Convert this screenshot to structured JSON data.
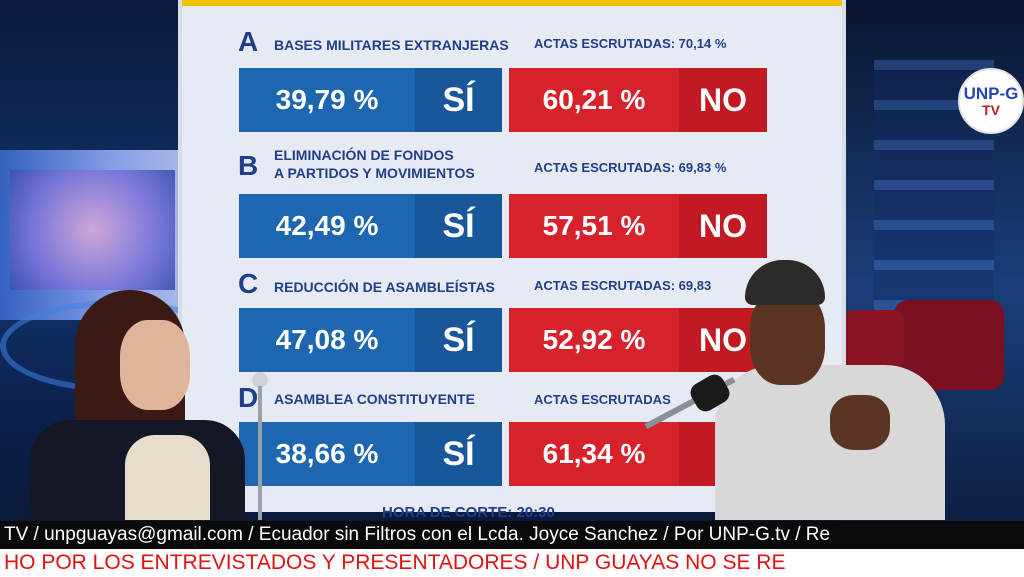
{
  "board": {
    "questions": [
      {
        "letter": "A",
        "title_lines": [
          "BASES MILITARES EXTRANJERAS"
        ],
        "actas": "ACTAS ESCRUTADAS: 70,14 %",
        "si_pct": "39,79 %",
        "si_label": "SÍ",
        "no_pct": "60,21 %",
        "no_label": "NO"
      },
      {
        "letter": "B",
        "title_lines": [
          "ELIMINACIÓN DE FONDOS",
          "A PARTIDOS Y MOVIMIENTOS"
        ],
        "actas": "ACTAS ESCRUTADAS: 69,83 %",
        "si_pct": "42,49 %",
        "si_label": "SÍ",
        "no_pct": "57,51 %",
        "no_label": "NO"
      },
      {
        "letter": "C",
        "title_lines": [
          "REDUCCIÓN DE ASAMBLEÍSTAS"
        ],
        "actas": "ACTAS ESCRUTADAS: 69,83",
        "si_pct": "47,08 %",
        "si_label": "SÍ",
        "no_pct": "52,92 %",
        "no_label": "NO"
      },
      {
        "letter": "D",
        "title_lines": [
          "ASAMBLEA CONSTITUYENTE"
        ],
        "actas": "ACTAS ESCRUTADAS",
        "si_pct": "38,66 %",
        "si_label": "SÍ",
        "no_pct": "61,34 %",
        "no_label": ""
      }
    ],
    "hora": "HORA DE CORTE: 20:30"
  },
  "logo": {
    "top": "UNP-G",
    "bottom": "TV"
  },
  "ticker": {
    "line1": "TV / unpguayas@gmail.com / Ecuador sin Filtros con el Lcda. Joyce Sanchez / Por UNP-G.tv / Re",
    "line2": "HO POR LOS ENTREVISTADOS Y PRESENTADORES / UNP GUAYAS NO SE RE"
  },
  "colors": {
    "si": "#1f66b0",
    "no": "#d8222b",
    "ticker_red": "#e01010"
  }
}
